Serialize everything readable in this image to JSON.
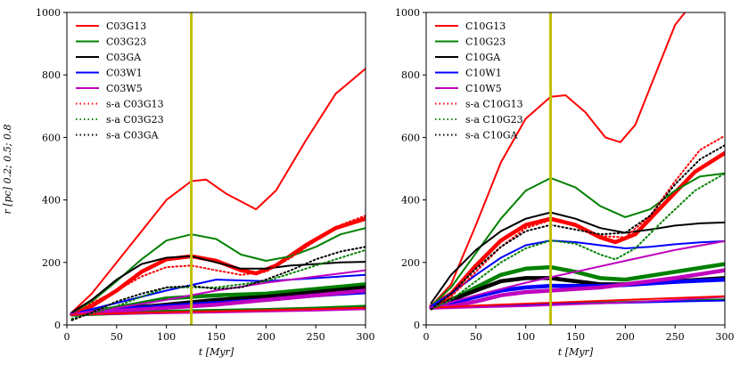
{
  "figure": {
    "ylabel": "r [pc] 0.2; 0.5; 0.8",
    "xlabel": "t [Myr]"
  },
  "chart_data": [
    {
      "type": "line",
      "xlabel": "t [Myr]",
      "ylabel": "r [pc] 0.2; 0.5; 0.8",
      "xlim": [
        0,
        300
      ],
      "ylim": [
        0,
        1000
      ],
      "xticks": [
        0,
        50,
        100,
        150,
        200,
        250,
        300
      ],
      "yticks": [
        0,
        200,
        400,
        600,
        800,
        1000
      ],
      "grid": false,
      "legend_position": "top-left",
      "vline": {
        "x": 125,
        "color": "#bfbf00"
      },
      "series": [
        {
          "name": "C03G13",
          "color": "#ff0000",
          "style": "solid",
          "width": 2.0,
          "x": [
            5,
            25,
            50,
            75,
            100,
            125,
            140,
            160,
            190,
            210,
            240,
            270,
            300
          ],
          "y": [
            40,
            100,
            200,
            300,
            400,
            460,
            465,
            420,
            370,
            430,
            590,
            740,
            820
          ]
        },
        {
          "name": "C03G23",
          "color": "#008000",
          "style": "solid",
          "width": 2.0,
          "x": [
            5,
            25,
            50,
            75,
            100,
            125,
            150,
            175,
            200,
            225,
            250,
            275,
            300
          ],
          "y": [
            40,
            75,
            140,
            210,
            270,
            290,
            275,
            225,
            205,
            220,
            250,
            290,
            310
          ]
        },
        {
          "name": "C03GA",
          "color": "#000000",
          "style": "solid",
          "width": 2.0,
          "x": [
            5,
            25,
            50,
            75,
            100,
            125,
            150,
            175,
            200,
            225,
            250,
            275,
            300
          ],
          "y": [
            40,
            80,
            145,
            195,
            215,
            220,
            200,
            180,
            180,
            190,
            195,
            200,
            202
          ]
        },
        {
          "name": "C03W1",
          "color": "#0000ff",
          "style": "solid",
          "width": 2.0,
          "x": [
            5,
            50,
            100,
            150,
            200,
            250,
            300
          ],
          "y": [
            35,
            70,
            110,
            145,
            140,
            150,
            160
          ]
        },
        {
          "name": "C03W5",
          "color": "#bf00bf",
          "style": "solid",
          "width": 2.0,
          "x": [
            5,
            50,
            100,
            150,
            200,
            250,
            300
          ],
          "y": [
            35,
            55,
            80,
            110,
            135,
            155,
            175
          ]
        },
        {
          "name": "s-a C03G13",
          "color": "#ff0000",
          "style": "dotted",
          "width": 2.0,
          "x": [
            5,
            25,
            50,
            75,
            100,
            125,
            150,
            175,
            200,
            225,
            250,
            275,
            300
          ],
          "y": [
            30,
            70,
            110,
            155,
            185,
            190,
            175,
            160,
            170,
            215,
            270,
            320,
            350
          ]
        },
        {
          "name": "s-a C03G23",
          "color": "#008000",
          "style": "dotted",
          "width": 2.0,
          "x": [
            5,
            50,
            100,
            150,
            200,
            250,
            300
          ],
          "y": [
            20,
            60,
            120,
            120,
            140,
            190,
            240
          ]
        },
        {
          "name": "s-a C03GA",
          "color": "#000000",
          "style": "dotted",
          "width": 2.0,
          "x": [
            5,
            25,
            50,
            75,
            100,
            125,
            150,
            175,
            200,
            225,
            250,
            275,
            300
          ],
          "y": [
            15,
            40,
            75,
            100,
            120,
            125,
            115,
            120,
            145,
            175,
            210,
            235,
            250
          ]
        }
      ]
    },
    {
      "type": "line",
      "xlabel": "t [Myr]",
      "ylabel": "",
      "xlim": [
        0,
        300
      ],
      "ylim": [
        0,
        1000
      ],
      "xticks": [
        0,
        50,
        100,
        150,
        200,
        250,
        300
      ],
      "yticks": [
        0,
        200,
        400,
        600,
        800,
        1000
      ],
      "grid": false,
      "legend_position": "top-left",
      "vline": {
        "x": 125,
        "color": "#bfbf00"
      },
      "series": [
        {
          "name": "C10G13",
          "color": "#ff0000",
          "style": "solid",
          "width": 2.0,
          "x": [
            5,
            25,
            50,
            75,
            100,
            125,
            140,
            160,
            180,
            195,
            210,
            230,
            250,
            260
          ],
          "y": [
            60,
            130,
            320,
            520,
            660,
            730,
            735,
            680,
            600,
            585,
            640,
            800,
            960,
            1000
          ]
        },
        {
          "name": "C10G23",
          "color": "#008000",
          "style": "solid",
          "width": 2.0,
          "x": [
            5,
            25,
            50,
            75,
            100,
            125,
            150,
            175,
            200,
            225,
            250,
            275,
            300
          ],
          "y": [
            60,
            120,
            230,
            340,
            430,
            470,
            440,
            380,
            345,
            370,
            430,
            475,
            485
          ]
        },
        {
          "name": "C10GA",
          "color": "#000000",
          "style": "solid",
          "width": 2.0,
          "x": [
            5,
            25,
            50,
            75,
            100,
            125,
            150,
            175,
            200,
            225,
            250,
            275,
            300
          ],
          "y": [
            70,
            160,
            240,
            300,
            340,
            360,
            340,
            310,
            295,
            305,
            318,
            325,
            328
          ]
        },
        {
          "name": "C10W1",
          "color": "#0000ff",
          "style": "solid",
          "width": 2.0,
          "x": [
            5,
            25,
            50,
            75,
            100,
            125,
            150,
            175,
            200,
            225,
            250,
            275,
            300
          ],
          "y": [
            60,
            100,
            160,
            215,
            255,
            270,
            265,
            255,
            245,
            250,
            258,
            264,
            268
          ]
        },
        {
          "name": "C10W5",
          "color": "#bf00bf",
          "style": "solid",
          "width": 2.0,
          "x": [
            5,
            50,
            100,
            150,
            200,
            250,
            300
          ],
          "y": [
            55,
            95,
            135,
            170,
            205,
            240,
            268
          ]
        },
        {
          "name": "s-a C10G13",
          "color": "#ff0000",
          "style": "dotted",
          "width": 2.0,
          "x": [
            5,
            25,
            50,
            75,
            100,
            125,
            150,
            175,
            200,
            225,
            250,
            275,
            300
          ],
          "y": [
            50,
            90,
            170,
            250,
            310,
            335,
            320,
            285,
            280,
            350,
            460,
            560,
            605
          ]
        },
        {
          "name": "s-a C10G23",
          "color": "#008000",
          "style": "dotted",
          "width": 2.0,
          "x": [
            5,
            25,
            50,
            75,
            100,
            125,
            150,
            175,
            190,
            210,
            240,
            270,
            300
          ],
          "y": [
            50,
            80,
            140,
            200,
            245,
            270,
            260,
            225,
            210,
            245,
            340,
            430,
            485
          ]
        },
        {
          "name": "s-a C10GA",
          "color": "#000000",
          "style": "dotted",
          "width": 2.0,
          "x": [
            5,
            25,
            50,
            75,
            100,
            125,
            150,
            175,
            200,
            225,
            250,
            275,
            300
          ],
          "y": [
            50,
            100,
            180,
            250,
            300,
            320,
            305,
            290,
            295,
            350,
            450,
            530,
            575
          ]
        }
      ]
    }
  ],
  "extra_series": [
    [
      {
        "color": "#ff0000",
        "width": 4.5,
        "x": [
          5,
          25,
          50,
          75,
          100,
          125,
          150,
          175,
          190,
          210,
          240,
          270,
          300
        ],
        "y": [
          35,
          60,
          110,
          170,
          210,
          220,
          205,
          175,
          165,
          190,
          255,
          310,
          340
        ]
      },
      {
        "color": "#008000",
        "width": 4.5,
        "x": [
          5,
          50,
          100,
          150,
          200,
          250,
          300
        ],
        "y": [
          35,
          55,
          85,
          95,
          100,
          115,
          130
        ]
      },
      {
        "color": "#008000",
        "width": 4.5,
        "x": [
          5,
          50,
          100,
          150,
          200,
          250,
          300
        ],
        "y": [
          33,
          38,
          42,
          45,
          48,
          52,
          58
        ]
      },
      {
        "color": "#000000",
        "width": 4.5,
        "x": [
          5,
          50,
          100,
          150,
          200,
          250,
          300
        ],
        "y": [
          35,
          50,
          65,
          80,
          90,
          105,
          120
        ]
      },
      {
        "color": "#0000ff",
        "width": 4.5,
        "x": [
          5,
          50,
          100,
          150,
          200,
          250,
          300
        ],
        "y": [
          35,
          50,
          60,
          70,
          80,
          95,
          105
        ]
      },
      {
        "color": "#0000ff",
        "width": 2.0,
        "x": [
          5,
          50,
          100,
          150,
          200,
          250,
          300
        ],
        "y": [
          33,
          36,
          40,
          43,
          46,
          50,
          55
        ]
      },
      {
        "color": "#bf00bf",
        "width": 4.5,
        "x": [
          5,
          50,
          100,
          150,
          200,
          250,
          300
        ],
        "y": [
          35,
          45,
          55,
          65,
          80,
          95,
          110
        ]
      },
      {
        "color": "#bf00bf",
        "width": 2.0,
        "x": [
          5,
          50,
          100,
          150,
          200,
          250,
          300
        ],
        "y": [
          33,
          35,
          38,
          40,
          43,
          46,
          50
        ]
      },
      {
        "color": "#ff0000",
        "width": 2.0,
        "x": [
          5,
          50,
          100,
          150,
          200,
          250,
          300
        ],
        "y": [
          33,
          37,
          41,
          44,
          47,
          51,
          55
        ]
      }
    ],
    [
      {
        "color": "#ff0000",
        "width": 4.5,
        "x": [
          5,
          25,
          50,
          75,
          100,
          125,
          150,
          175,
          190,
          210,
          240,
          270,
          300
        ],
        "y": [
          60,
          100,
          190,
          270,
          320,
          340,
          320,
          280,
          265,
          290,
          390,
          490,
          550
        ]
      },
      {
        "color": "#008000",
        "width": 4.5,
        "x": [
          5,
          25,
          50,
          75,
          100,
          125,
          150,
          175,
          200,
          250,
          300
        ],
        "y": [
          55,
          80,
          120,
          160,
          180,
          185,
          170,
          150,
          145,
          170,
          195
        ]
      },
      {
        "color": "#000000",
        "width": 4.5,
        "x": [
          5,
          25,
          50,
          75,
          100,
          125,
          150,
          175,
          200,
          250,
          300
        ],
        "y": [
          55,
          80,
          110,
          140,
          150,
          150,
          140,
          130,
          130,
          140,
          150
        ]
      },
      {
        "color": "#0000ff",
        "width": 4.5,
        "x": [
          5,
          25,
          50,
          75,
          100,
          125,
          150,
          175,
          200,
          250,
          300
        ],
        "y": [
          55,
          70,
          90,
          110,
          120,
          125,
          125,
          125,
          128,
          138,
          145
        ]
      },
      {
        "color": "#bf00bf",
        "width": 4.5,
        "x": [
          5,
          25,
          50,
          75,
          100,
          125,
          150,
          175,
          200,
          250,
          300
        ],
        "y": [
          55,
          60,
          75,
          95,
          105,
          110,
          115,
          120,
          130,
          150,
          175
        ]
      },
      {
        "color": "#008000",
        "width": 2.0,
        "x": [
          5,
          50,
          100,
          150,
          200,
          250,
          300
        ],
        "y": [
          55,
          60,
          65,
          70,
          74,
          78,
          82
        ]
      },
      {
        "color": "#0000ff",
        "width": 2.0,
        "x": [
          5,
          50,
          100,
          150,
          200,
          250,
          300
        ],
        "y": [
          55,
          60,
          65,
          68,
          71,
          75,
          78
        ]
      },
      {
        "color": "#bf00bf",
        "width": 2.0,
        "x": [
          5,
          50,
          100,
          150,
          200,
          250,
          300
        ],
        "y": [
          52,
          56,
          60,
          66,
          72,
          80,
          90
        ]
      },
      {
        "color": "#ff0000",
        "width": 2.0,
        "x": [
          5,
          50,
          100,
          150,
          200,
          250,
          300
        ],
        "y": [
          55,
          62,
          68,
          74,
          80,
          86,
          92
        ]
      }
    ]
  ]
}
